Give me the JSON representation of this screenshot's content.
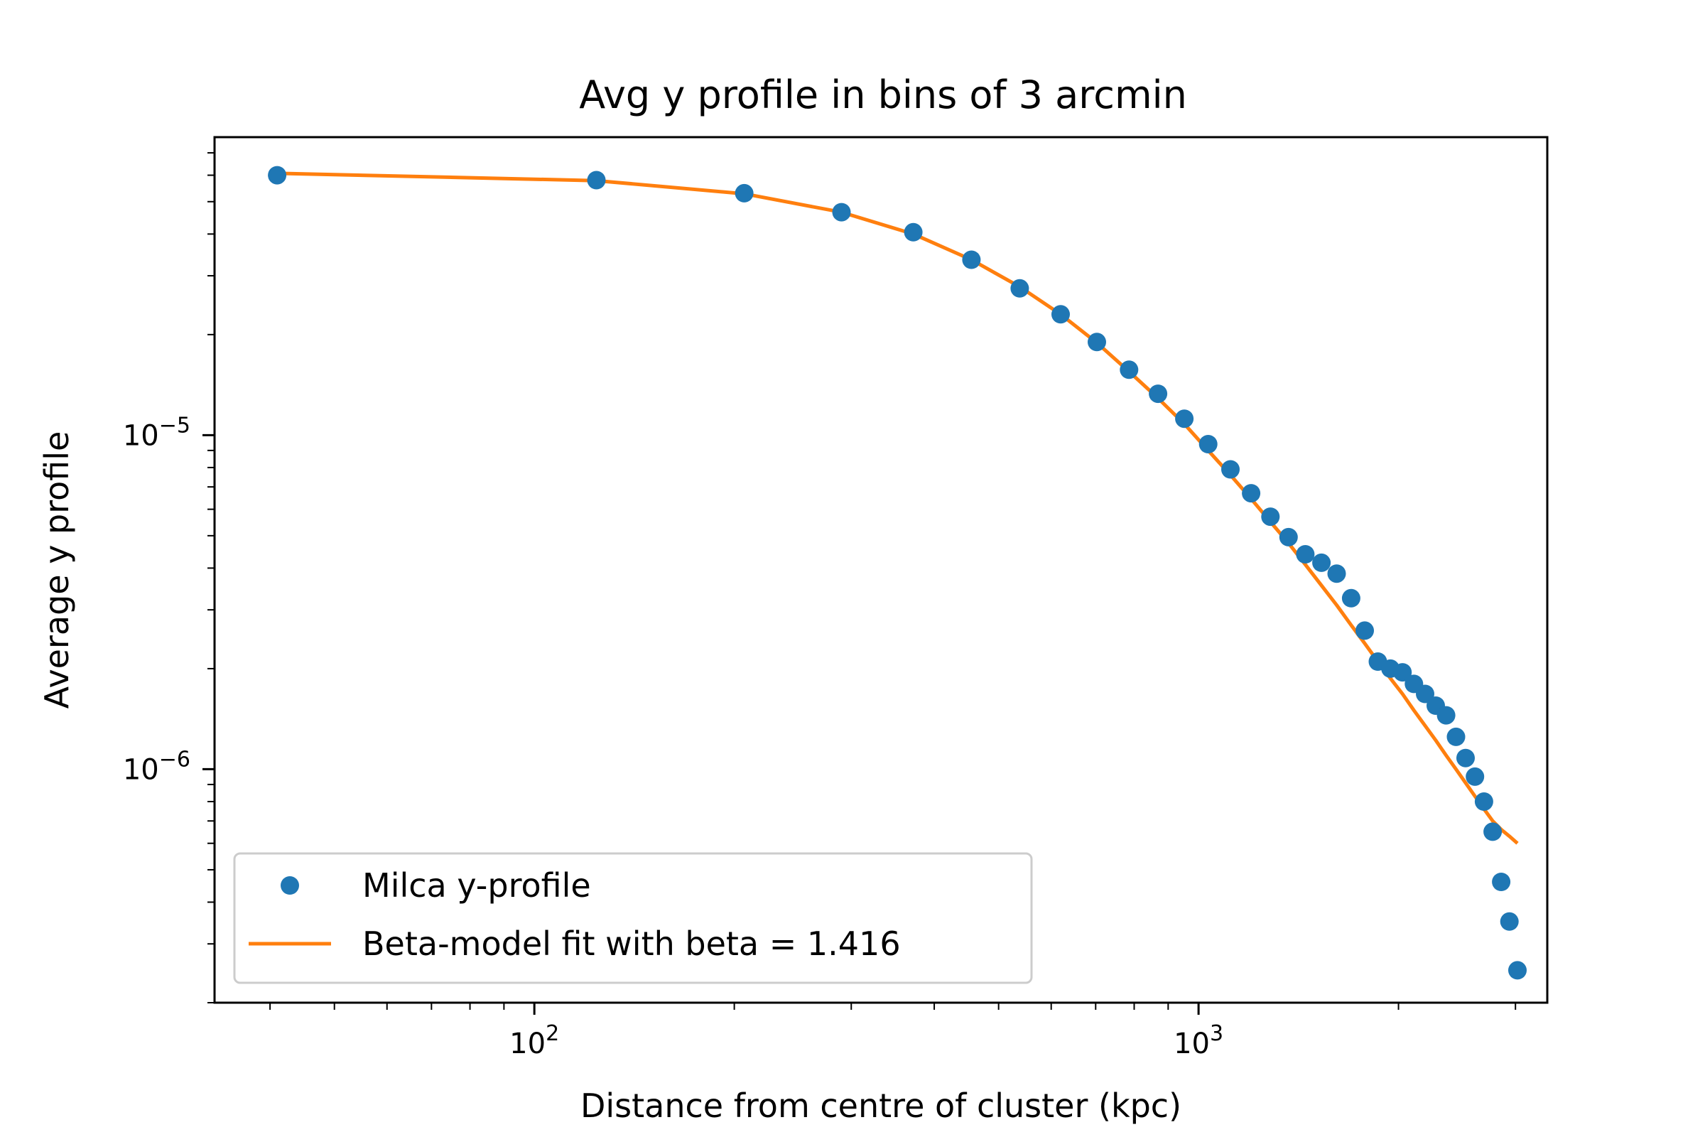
{
  "chart_data": {
    "type": "scatter",
    "title": "Avg y profile in bins of 3 arcmin",
    "xlabel": "Distance from centre of cluster (kpc)",
    "ylabel": "Average y profile",
    "xscale": "log",
    "yscale": "log",
    "xlim": [
      33,
      3350
    ],
    "ylim": [
      2e-07,
      7.8e-05
    ],
    "grid": false,
    "legend_position": "lower-left",
    "x_major_ticks": [
      {
        "value": 100,
        "label": "10",
        "exp": "2"
      },
      {
        "value": 1000,
        "label": "10",
        "exp": "3"
      }
    ],
    "y_major_ticks": [
      {
        "value": 1e-06,
        "label": "10",
        "exp": "−6"
      },
      {
        "value": 1e-05,
        "label": "10",
        "exp": "−5"
      }
    ],
    "series": [
      {
        "name": "Milca y-profile",
        "kind": "points",
        "color": "#1f77b4",
        "x": [
          41,
          124,
          207,
          290,
          372,
          455,
          538,
          620,
          703,
          786,
          869,
          952,
          1034,
          1117,
          1200,
          1283,
          1366,
          1448,
          1531,
          1614,
          1697,
          1779,
          1862,
          1945,
          2028,
          2110,
          2193,
          2276,
          2359,
          2441,
          2524,
          2607,
          2690,
          2772,
          2855,
          2938,
          3021
        ],
        "y": [
          6e-05,
          5.8e-05,
          5.3e-05,
          4.65e-05,
          4.05e-05,
          3.35e-05,
          2.75e-05,
          2.3e-05,
          1.9e-05,
          1.57e-05,
          1.33e-05,
          1.12e-05,
          9.4e-06,
          7.9e-06,
          6.7e-06,
          5.7e-06,
          4.95e-06,
          4.4e-06,
          4.15e-06,
          3.85e-06,
          3.25e-06,
          2.6e-06,
          2.1e-06,
          2e-06,
          1.95e-06,
          1.8e-06,
          1.68e-06,
          1.55e-06,
          1.45e-06,
          1.25e-06,
          1.08e-06,
          9.5e-07,
          8e-07,
          6.5e-07,
          4.6e-07,
          3.5e-07,
          2.5e-07
        ]
      },
      {
        "name": "Beta-model fit with beta = 1.416",
        "kind": "line",
        "color": "#ff7f0e",
        "x": [
          41,
          124,
          207,
          290,
          372,
          455,
          538,
          620,
          703,
          786,
          869,
          952,
          1034,
          1117,
          1200,
          1283,
          1366,
          1448,
          1531,
          1614,
          1697,
          1779,
          1862,
          1945,
          2028,
          2110,
          2193,
          2276,
          2359,
          2441,
          2524,
          2607,
          2690,
          2772,
          2855,
          2938,
          3021
        ],
        "y": [
          6.08e-05,
          5.78e-05,
          5.28e-05,
          4.65e-05,
          4e-05,
          3.35e-05,
          2.78e-05,
          2.3e-05,
          1.89e-05,
          1.55e-05,
          1.29e-05,
          1.08e-05,
          9e-06,
          7.6e-06,
          6.45e-06,
          5.5e-06,
          4.75e-06,
          4.1e-06,
          3.55e-06,
          3.1e-06,
          2.7e-06,
          2.38e-06,
          2.1e-06,
          1.87e-06,
          1.68e-06,
          1.5e-06,
          1.35e-06,
          1.22e-06,
          1.1e-06,
          1e-06,
          9.1e-07,
          8.3e-07,
          7.6e-07,
          7e-07,
          6.6e-07,
          6.3e-07,
          6e-07
        ]
      }
    ]
  }
}
